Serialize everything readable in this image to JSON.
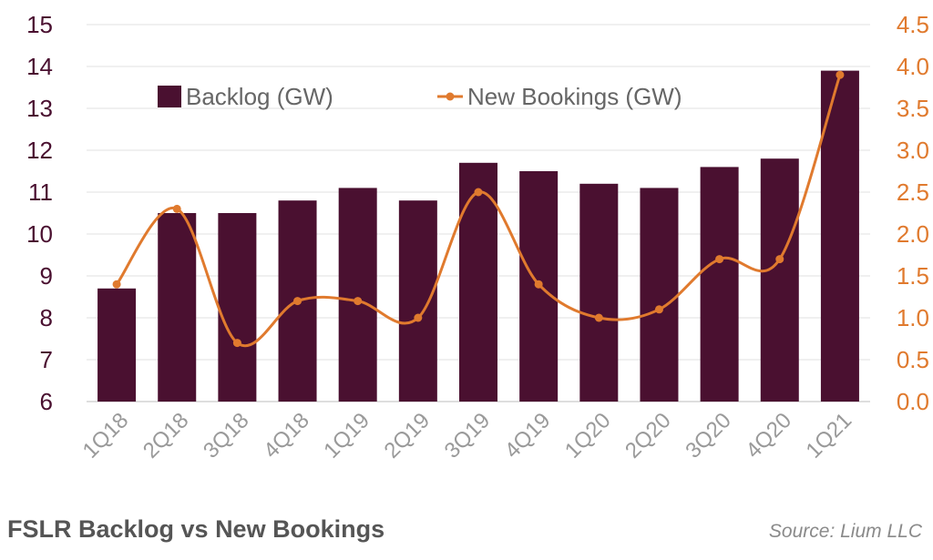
{
  "footer": {
    "title": "FSLR Backlog vs New Bookings",
    "source": "Source: Lium LLC"
  },
  "colors": {
    "bar": "#4a1030",
    "line": "#e07a2e",
    "grid": "#e6e6e6",
    "left_axis": "#4a1030",
    "right_axis": "#e07a2e"
  },
  "chart_data": {
    "type": "bar",
    "categories": [
      "1Q18",
      "2Q18",
      "3Q18",
      "4Q18",
      "1Q19",
      "2Q19",
      "3Q19",
      "4Q19",
      "1Q20",
      "2Q20",
      "3Q20",
      "4Q20",
      "1Q21"
    ],
    "series": [
      {
        "name": "Backlog (GW)",
        "type": "bar",
        "axis": "left",
        "values": [
          8.7,
          10.5,
          10.5,
          10.8,
          11.1,
          10.8,
          11.7,
          11.5,
          11.2,
          11.1,
          11.6,
          11.8,
          13.9
        ]
      },
      {
        "name": "New Bookings (GW)",
        "type": "line",
        "axis": "right",
        "values": [
          1.4,
          2.3,
          0.7,
          1.2,
          1.2,
          1.0,
          2.5,
          1.4,
          1.0,
          1.1,
          1.7,
          1.7,
          3.9
        ]
      }
    ],
    "y_left": {
      "ylim": [
        6,
        15
      ],
      "ticks": [
        "6",
        "7",
        "8",
        "9",
        "10",
        "11",
        "12",
        "13",
        "14",
        "15"
      ]
    },
    "y_right": {
      "ylim": [
        0,
        4.5
      ],
      "ticks": [
        "0.0",
        "0.5",
        "1.0",
        "1.5",
        "2.0",
        "2.5",
        "3.0",
        "3.5",
        "4.0",
        "4.5"
      ]
    },
    "grid": true,
    "legend_position": "top-left"
  }
}
